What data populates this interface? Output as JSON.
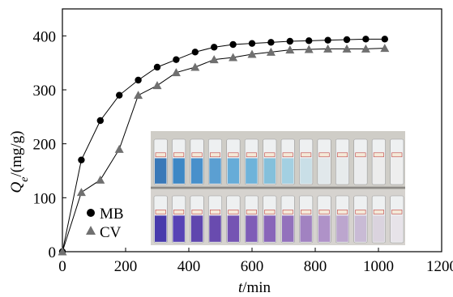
{
  "chart_data": {
    "type": "scatter",
    "x_axis": {
      "title_var": "t",
      "title_unit": "/min",
      "range": [
        0,
        1200
      ],
      "ticks": [
        0,
        200,
        400,
        600,
        800,
        1000,
        1200
      ]
    },
    "y_axis": {
      "title_var": "Q",
      "title_sub": "e",
      "title_unit": "/(mg/g)",
      "range": [
        0,
        450
      ],
      "ticks": [
        0,
        100,
        200,
        300,
        400
      ]
    },
    "grid": false,
    "legend": {
      "placement": "bottom-left"
    },
    "series": [
      {
        "name": "MB",
        "marker": "circle",
        "color": "#000000",
        "x": [
          0,
          60,
          120,
          180,
          240,
          300,
          360,
          420,
          480,
          540,
          600,
          660,
          720,
          780,
          840,
          900,
          960,
          1020
        ],
        "y": [
          0,
          170,
          243,
          290,
          318,
          342,
          356,
          370,
          379,
          384,
          386,
          388,
          390,
          391,
          392,
          393,
          394,
          394
        ]
      },
      {
        "name": "CV",
        "marker": "triangle",
        "color": "#707070",
        "x": [
          0,
          60,
          120,
          180,
          240,
          300,
          360,
          420,
          480,
          540,
          600,
          660,
          720,
          780,
          840,
          900,
          960,
          1020
        ],
        "y": [
          0,
          110,
          133,
          190,
          290,
          308,
          332,
          342,
          356,
          360,
          366,
          370,
          374,
          375,
          376,
          376,
          376,
          377
        ]
      }
    ],
    "inset_photo": {
      "description_icon": "sample-vials-photo",
      "top_row_colors": [
        "#2a6fb3",
        "#2f7fc1",
        "#3a88c8",
        "#4e98cf",
        "#5aa6d6",
        "#63aed8",
        "#7bbcd9",
        "#9ccde1",
        "#c5dde6",
        "#dfe7ea",
        "#e6eaec",
        "#eaeced",
        "#ececec",
        "#eeeeee"
      ],
      "bottom_row_colors": [
        "#3a2aa6",
        "#4a33b0",
        "#5237a8",
        "#5d3da9",
        "#6a47ae",
        "#7550b2",
        "#8059b4",
        "#8b66b7",
        "#9a78bd",
        "#a98ac4",
        "#b7a0cb",
        "#c6b6d2",
        "#d8d0dc",
        "#e6e2e8"
      ]
    }
  }
}
